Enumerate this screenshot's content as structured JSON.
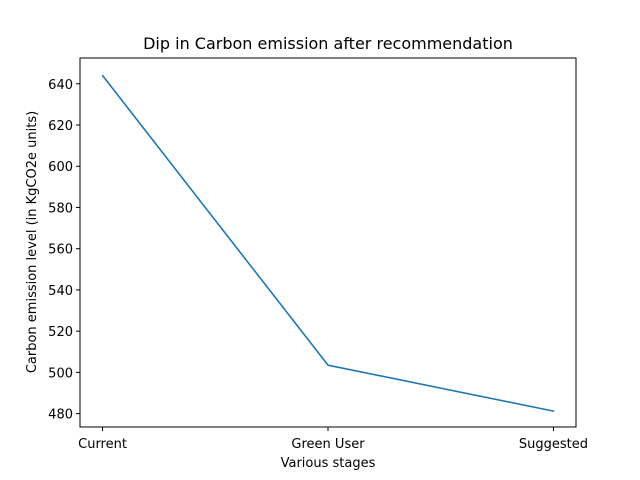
{
  "chart_data": {
    "type": "line",
    "title": "Dip in Carbon emission after recommendation",
    "xlabel": "Various stages",
    "ylabel": "Carbon emission level (in KgCO2e units)",
    "categories": [
      "Current",
      "Green User",
      "Suggested"
    ],
    "series": [
      {
        "values": [
          644,
          503.5,
          481.2
        ],
        "color": "#1f77b4"
      }
    ],
    "ylim": [
      473.5,
      652.5
    ],
    "yticks": [
      480,
      500,
      520,
      540,
      560,
      580,
      600,
      620,
      640
    ],
    "grid": false,
    "legend": "none"
  }
}
